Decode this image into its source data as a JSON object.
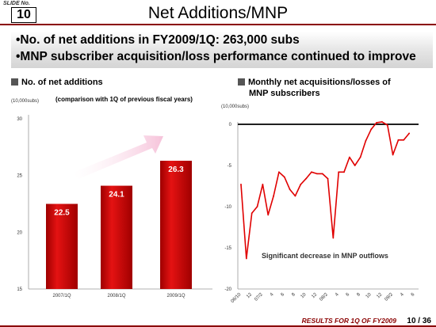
{
  "header": {
    "slide_no_label": "SLIDE No.",
    "slide_no": "10",
    "title": "Net Additions/MNP"
  },
  "bullets": [
    "•No. of net additions in FY2009/1Q: 263,000 subs",
    "•MNP subscriber acquisition/loss performance continued to improve"
  ],
  "left_panel": {
    "heading": "No. of net additions",
    "unit": "(10,000subs)",
    "note": "(comparison with 1Q of previous fiscal years)"
  },
  "right_panel": {
    "heading_line1": "Monthly net acquisitions/losses of",
    "heading_line2": "MNP subscribers",
    "unit": "(10,000subs)"
  },
  "footer": {
    "text": "RESULTS FOR 1Q OF FY2009",
    "page": "10 / 36"
  },
  "colors": {
    "bar": "#cc0000",
    "line": "#e00000",
    "accent": "#8a0000",
    "arrow": "#f6c8dc"
  },
  "chart_data": [
    {
      "type": "bar",
      "categories": [
        "2007/1Q",
        "2008/1Q",
        "2009/1Q"
      ],
      "values": [
        22.5,
        24.1,
        26.3
      ],
      "value_labels": [
        "22.5",
        "24.1",
        "26.3"
      ],
      "yticks": [
        "30",
        "25",
        "20",
        "15"
      ],
      "ylim": [
        15,
        30
      ],
      "title": "No. of net additions",
      "ylabel": "(10,000subs)"
    },
    {
      "type": "line",
      "x": [
        "06/10",
        "06/11",
        "06/12",
        "07/1",
        "07/2",
        "07/3",
        "07/4",
        "07/5",
        "07/6",
        "07/7",
        "07/8",
        "07/9",
        "07/10",
        "07/11",
        "07/12",
        "08/1",
        "08/2",
        "08/3",
        "08/4",
        "08/5",
        "08/6",
        "08/7",
        "08/8",
        "08/9",
        "08/10",
        "08/11",
        "08/12",
        "09/1",
        "09/2",
        "09/3",
        "09/4",
        "09/5",
        "09/6"
      ],
      "xtick_labels": [
        "06/10",
        "12",
        "07/2",
        "4",
        "6",
        "8",
        "10",
        "12",
        "08/2",
        "4",
        "6",
        "8",
        "10",
        "12",
        "09/2",
        "4",
        "6"
      ],
      "values": [
        -7.3,
        -16.3,
        -10.8,
        -10.0,
        -7.3,
        -11.0,
        -8.7,
        -5.8,
        -6.4,
        -7.9,
        -8.7,
        -7.3,
        -6.6,
        -5.8,
        -6.0,
        -6.0,
        -6.6,
        -13.8,
        -5.8,
        -5.8,
        -4.0,
        -5.0,
        -4.0,
        -2.0,
        -0.6,
        0.2,
        0.3,
        -0.1,
        -3.7,
        -1.9,
        -1.9,
        -1.1,
        null
      ],
      "yticks": [
        "0",
        "-5",
        "-10",
        "-15",
        "-20"
      ],
      "ylim": [
        -20,
        0
      ],
      "annotation": "Significant decrease in MNP outflows",
      "title": "Monthly net acquisitions/losses of MNP subscribers",
      "ylabel": "(10,000subs)"
    }
  ]
}
